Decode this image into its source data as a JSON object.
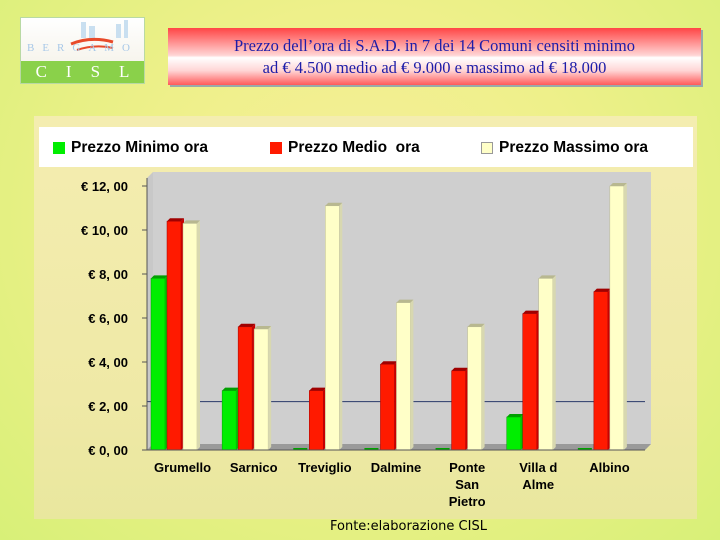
{
  "logo": {
    "city": "BERGAMO",
    "name": "CISL"
  },
  "title": {
    "line1": "Prezzo dell’ora di S.A.D. in 7 dei 14 Comuni censiti minimo",
    "line2": "ad € 4.500 medio ad € 9.000 e massimo ad € 18.000"
  },
  "source": "Fonte:elaborazione CISL",
  "colors": {
    "min": "#00ee00",
    "med": "#ff1a00",
    "max": "#ffffc8"
  },
  "chart_data": {
    "type": "bar",
    "categories": [
      "Grumello",
      "Sarnico",
      "Treviglio",
      "Dalmine",
      "Ponte San Pietro",
      "Villa d Alme",
      "Albino"
    ],
    "category_lines": [
      [
        "Grumello"
      ],
      [
        "Sarnico"
      ],
      [
        "Treviglio"
      ],
      [
        "Dalmine"
      ],
      [
        "Ponte",
        "San",
        "Pietro"
      ],
      [
        "Villa d",
        "Alme"
      ],
      [
        "Albino"
      ]
    ],
    "series": [
      {
        "name": "Prezzo Minimo ora",
        "values": [
          7.8,
          2.7,
          0,
          0,
          0,
          1.5,
          0
        ]
      },
      {
        "name": "Prezzo Medio  ora",
        "values": [
          10.4,
          5.6,
          2.7,
          3.9,
          3.6,
          6.2,
          7.2
        ]
      },
      {
        "name": "Prezzo Massimo ora",
        "values": [
          10.3,
          5.5,
          11.1,
          6.7,
          5.6,
          7.8,
          12.0
        ]
      }
    ],
    "yticks": [
      "€ 0, 00",
      "€ 2, 00",
      "€ 4, 00",
      "€ 6, 00",
      "€ 8, 00",
      "€ 10, 00",
      "€ 12, 00"
    ],
    "ylim": [
      0,
      12
    ],
    "legend": "top",
    "grid": false
  }
}
